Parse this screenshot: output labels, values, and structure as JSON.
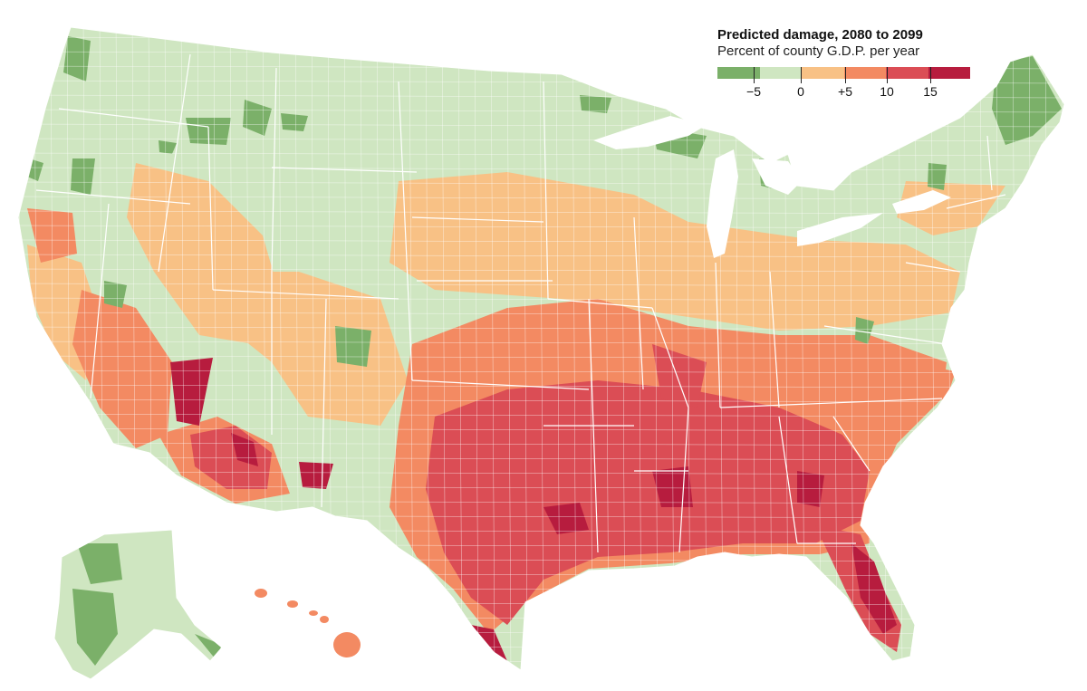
{
  "legend": {
    "title": "Predicted damage, 2080 to 2099",
    "subtitle": "Percent of county G.D.P. per year",
    "ticks": [
      {
        "label": "−5",
        "pos": 0.143
      },
      {
        "label": "0",
        "pos": 0.329
      },
      {
        "label": "+5",
        "pos": 0.507
      },
      {
        "label": "10",
        "pos": 0.671
      },
      {
        "label": "15",
        "pos": 0.843
      }
    ]
  },
  "colors": {
    "gain_high": "#7bb069",
    "gain_low": "#cfe6c1",
    "loss_low": "#f8c185",
    "loss_mid": "#f38a62",
    "loss_high": "#db4d55",
    "loss_max": "#b71c3e",
    "borders": "#ffffff"
  }
}
